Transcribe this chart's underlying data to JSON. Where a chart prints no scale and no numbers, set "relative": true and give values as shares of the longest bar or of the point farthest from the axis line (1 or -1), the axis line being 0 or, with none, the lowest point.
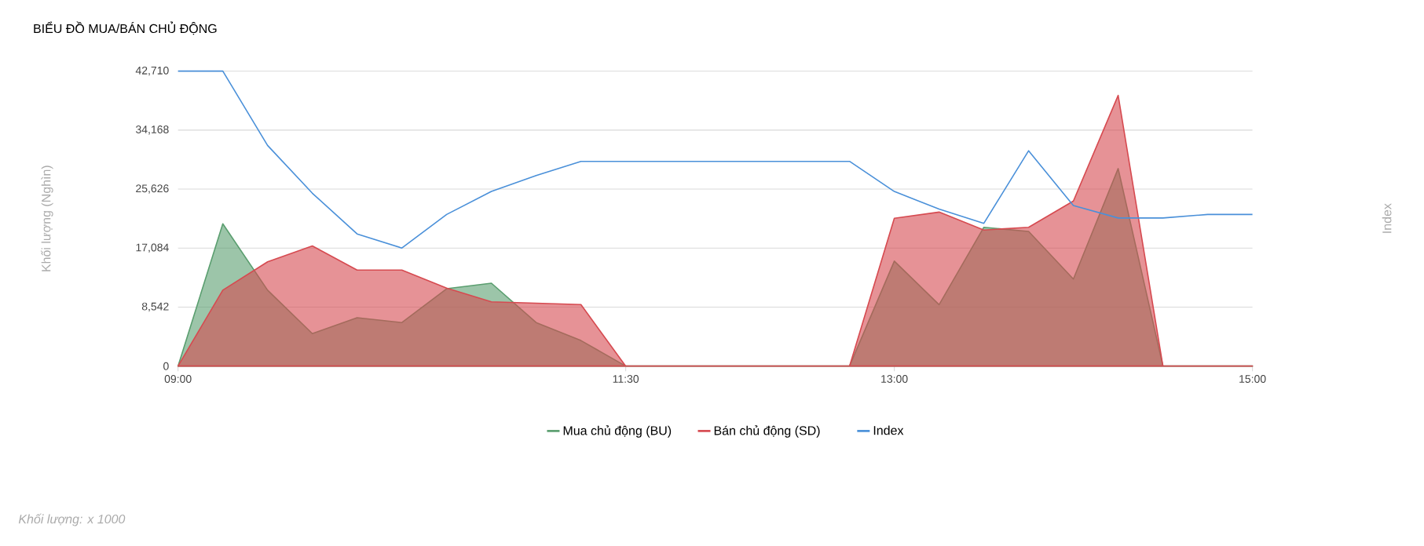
{
  "chart_data": [
    {
      "type": "area",
      "title": "BIỂU ĐỒ MUA/BÁN CHỦ ĐỘNG",
      "ylabel": "Khối lượng (Nghìn)",
      "annotations": [
        "*Khối lượng: x 1000*"
      ],
      "xlim": [
        9,
        15
      ],
      "xticks": [
        {
          "value": 9,
          "label": "09:00"
        },
        {
          "value": 11.5,
          "label": "11:30"
        },
        {
          "value": 13,
          "label": "13:00"
        },
        {
          "value": 15,
          "label": "15:00"
        }
      ],
      "ylim": [
        0,
        42710
      ],
      "yticks": [
        0,
        {
          "value": 8542,
          "label": "8,542"
        },
        {
          "value": 17084,
          "label": "17,084"
        },
        {
          "value": 25626,
          "label": "25,626"
        },
        {
          "value": 34168,
          "label": "34,168"
        },
        {
          "value": 42710,
          "label": "42,710"
        }
      ],
      "grid": "y",
      "legend": "bottom",
      "x": [
        9,
        9.25,
        9.5,
        9.75,
        10,
        10.25,
        10.5,
        10.75,
        11,
        11.25,
        11.5,
        12.75,
        13,
        13.25,
        13.5,
        13.75,
        14,
        14.25,
        14.5,
        14.75,
        15
      ],
      "series": [
        {
          "name": "Mua chủ động (BU)",
          "color": "#5a9e6f",
          "values": [
            0,
            20600,
            11000,
            4700,
            7000,
            6300,
            11200,
            12000,
            6300,
            3700,
            0,
            0,
            15200,
            8900,
            20100,
            19500,
            12600,
            28600,
            0,
            0,
            0
          ]
        },
        {
          "name": "Bán chủ động (SD)",
          "color": "#d64a50",
          "values": [
            0,
            11000,
            15100,
            17400,
            13900,
            13900,
            11300,
            9300,
            9100,
            8900,
            0,
            0,
            21400,
            22300,
            19700,
            20100,
            23900,
            39200,
            0,
            0,
            0
          ]
        }
      ]
    },
    {
      "type": "line",
      "relative": true,
      "ylabel": "Index",
      "tick_labels": false,
      "xlim": [
        9,
        15
      ],
      "legend": "bottom",
      "x": [
        9,
        9.25,
        9.5,
        9.75,
        10,
        10.25,
        10.5,
        10.75,
        11,
        11.25,
        11.5,
        12.75,
        13,
        13.25,
        13.5,
        13.75,
        14,
        14.25,
        14.5,
        14.75,
        15
      ],
      "series": [
        {
          "name": "Index",
          "color": "#4a90d9",
          "values": [
            1,
            1,
            0.58,
            0.31,
            0.08,
            0,
            0.19,
            0.32,
            0.41,
            0.49,
            0.49,
            0.49,
            0.32,
            0.22,
            0.14,
            0.55,
            0.24,
            0.17,
            0.17,
            0.19,
            0.19
          ]
        }
      ]
    }
  ]
}
